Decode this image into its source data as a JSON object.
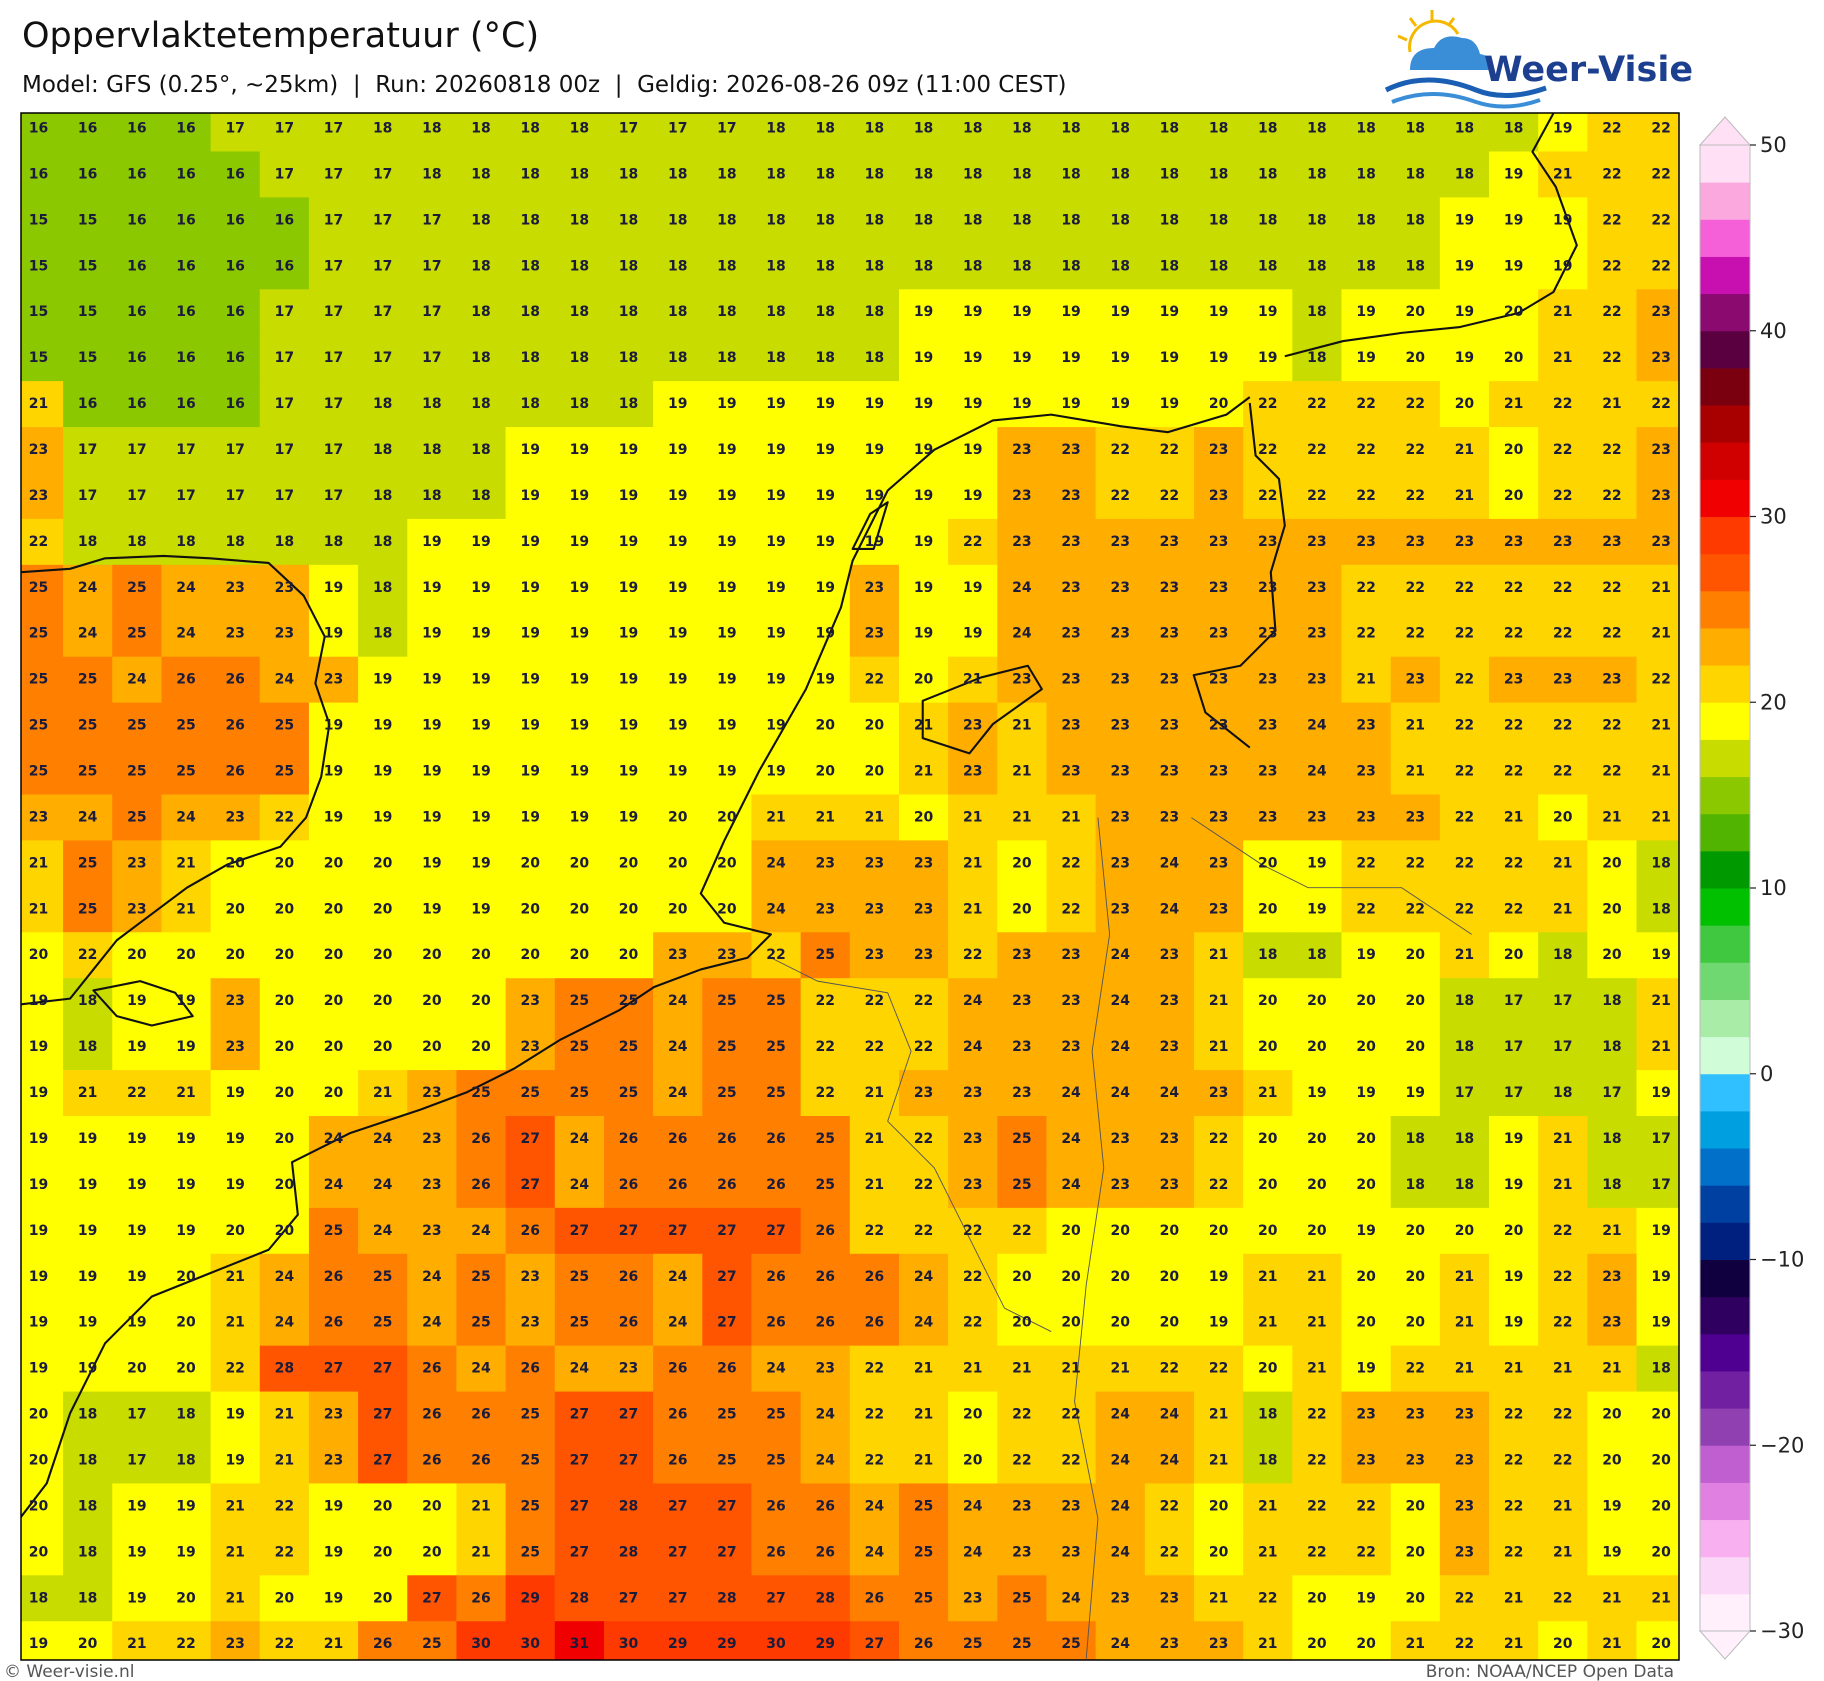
{
  "header": {
    "title": "Oppervlaktetemperatuur (°C)",
    "subtitle": "Model: GFS (0.25°, ~25km)  |  Run: 20260818 00z  |  Geldig: 2026-08-26 09z (11:00 CEST)",
    "logo": "Weer-Visie"
  },
  "map": {
    "grid": [
      [
        16,
        16,
        16,
        16,
        17,
        17,
        17,
        18,
        18,
        18,
        18,
        18,
        17,
        17,
        17,
        18,
        18,
        18,
        18,
        18,
        18,
        18,
        18,
        18,
        18,
        18,
        18,
        18,
        18,
        18,
        18,
        19,
        22,
        22
      ],
      [
        16,
        16,
        16,
        16,
        16,
        17,
        17,
        17,
        18,
        18,
        18,
        18,
        18,
        18,
        18,
        18,
        18,
        18,
        18,
        18,
        18,
        18,
        18,
        18,
        18,
        18,
        18,
        18,
        18,
        18,
        19,
        21,
        22,
        22
      ],
      [
        15,
        15,
        16,
        16,
        16,
        16,
        17,
        17,
        17,
        18,
        18,
        18,
        18,
        18,
        18,
        18,
        18,
        18,
        18,
        18,
        18,
        18,
        18,
        18,
        18,
        18,
        18,
        18,
        18,
        19,
        19,
        19,
        22,
        22
      ],
      [
        15,
        15,
        16,
        16,
        16,
        16,
        17,
        17,
        17,
        18,
        18,
        18,
        18,
        18,
        18,
        18,
        18,
        18,
        18,
        18,
        18,
        18,
        18,
        18,
        18,
        18,
        18,
        18,
        18,
        19,
        19,
        19,
        22,
        22
      ],
      [
        15,
        15,
        16,
        16,
        16,
        17,
        17,
        17,
        17,
        18,
        18,
        18,
        18,
        18,
        18,
        18,
        18,
        18,
        19,
        19,
        19,
        19,
        19,
        19,
        19,
        19,
        18,
        19,
        20,
        19,
        20,
        21,
        22,
        23
      ],
      [
        15,
        15,
        16,
        16,
        16,
        17,
        17,
        17,
        17,
        18,
        18,
        18,
        18,
        18,
        18,
        18,
        18,
        18,
        19,
        19,
        19,
        19,
        19,
        19,
        19,
        19,
        18,
        19,
        20,
        19,
        20,
        21,
        22,
        23
      ],
      [
        21,
        16,
        16,
        16,
        16,
        17,
        17,
        18,
        18,
        18,
        18,
        18,
        18,
        19,
        19,
        19,
        19,
        19,
        19,
        19,
        19,
        19,
        19,
        19,
        20,
        22,
        22,
        22,
        22,
        20,
        21,
        22,
        21,
        22
      ],
      [
        23,
        17,
        17,
        17,
        17,
        17,
        17,
        18,
        18,
        18,
        19,
        19,
        19,
        19,
        19,
        19,
        19,
        19,
        19,
        19,
        23,
        23,
        22,
        22,
        23,
        22,
        22,
        22,
        22,
        21,
        20,
        22,
        22,
        23
      ],
      [
        23,
        17,
        17,
        17,
        17,
        17,
        17,
        18,
        18,
        18,
        19,
        19,
        19,
        19,
        19,
        19,
        19,
        19,
        19,
        19,
        23,
        23,
        22,
        22,
        23,
        22,
        22,
        22,
        22,
        21,
        20,
        22,
        22,
        23
      ],
      [
        22,
        18,
        18,
        18,
        18,
        18,
        18,
        18,
        19,
        19,
        19,
        19,
        19,
        19,
        19,
        19,
        19,
        19,
        19,
        22,
        23,
        23,
        23,
        23,
        23,
        23,
        23,
        23,
        23,
        23,
        23,
        23,
        23,
        23
      ],
      [
        25,
        24,
        25,
        24,
        23,
        23,
        19,
        18,
        19,
        19,
        19,
        19,
        19,
        19,
        19,
        19,
        19,
        23,
        19,
        19,
        24,
        23,
        23,
        23,
        23,
        23,
        23,
        22,
        22,
        22,
        22,
        22,
        22,
        21
      ],
      [
        25,
        24,
        25,
        24,
        23,
        23,
        19,
        18,
        19,
        19,
        19,
        19,
        19,
        19,
        19,
        19,
        19,
        23,
        19,
        19,
        24,
        23,
        23,
        23,
        23,
        23,
        23,
        22,
        22,
        22,
        22,
        22,
        22,
        21
      ],
      [
        25,
        25,
        24,
        26,
        26,
        24,
        23,
        19,
        19,
        19,
        19,
        19,
        19,
        19,
        19,
        19,
        19,
        22,
        20,
        21,
        23,
        23,
        23,
        23,
        23,
        23,
        23,
        21,
        23,
        22,
        23,
        23,
        23,
        22
      ],
      [
        25,
        25,
        25,
        25,
        26,
        25,
        19,
        19,
        19,
        19,
        19,
        19,
        19,
        19,
        19,
        19,
        20,
        20,
        21,
        23,
        21,
        23,
        23,
        23,
        23,
        23,
        24,
        23,
        21,
        22,
        22,
        22,
        22,
        21
      ],
      [
        25,
        25,
        25,
        25,
        26,
        25,
        19,
        19,
        19,
        19,
        19,
        19,
        19,
        19,
        19,
        19,
        20,
        20,
        21,
        23,
        21,
        23,
        23,
        23,
        23,
        23,
        24,
        23,
        21,
        22,
        22,
        22,
        22,
        21
      ],
      [
        23,
        24,
        25,
        24,
        23,
        22,
        19,
        19,
        19,
        19,
        19,
        19,
        19,
        20,
        20,
        21,
        21,
        21,
        20,
        21,
        21,
        21,
        23,
        23,
        23,
        23,
        23,
        23,
        23,
        22,
        21,
        20,
        21,
        21
      ],
      [
        21,
        25,
        23,
        21,
        20,
        20,
        20,
        20,
        19,
        19,
        20,
        20,
        20,
        20,
        20,
        24,
        23,
        23,
        23,
        21,
        20,
        22,
        23,
        24,
        23,
        20,
        19,
        22,
        22,
        22,
        22,
        21,
        20,
        18
      ],
      [
        21,
        25,
        23,
        21,
        20,
        20,
        20,
        20,
        19,
        19,
        20,
        20,
        20,
        20,
        20,
        24,
        23,
        23,
        23,
        21,
        20,
        22,
        23,
        24,
        23,
        20,
        19,
        22,
        22,
        22,
        22,
        21,
        20,
        18
      ],
      [
        20,
        22,
        20,
        20,
        20,
        20,
        20,
        20,
        20,
        20,
        20,
        20,
        20,
        23,
        23,
        22,
        25,
        23,
        23,
        22,
        23,
        23,
        24,
        23,
        21,
        18,
        18,
        19,
        20,
        21,
        20,
        18,
        20,
        19
      ],
      [
        19,
        18,
        19,
        19,
        23,
        20,
        20,
        20,
        20,
        20,
        23,
        25,
        25,
        24,
        25,
        25,
        22,
        22,
        22,
        24,
        23,
        23,
        24,
        23,
        21,
        20,
        20,
        20,
        20,
        18,
        17,
        17,
        18,
        21
      ],
      [
        19,
        18,
        19,
        19,
        23,
        20,
        20,
        20,
        20,
        20,
        23,
        25,
        25,
        24,
        25,
        25,
        22,
        22,
        22,
        24,
        23,
        23,
        24,
        23,
        21,
        20,
        20,
        20,
        20,
        18,
        17,
        17,
        18,
        21
      ],
      [
        19,
        21,
        22,
        21,
        19,
        20,
        20,
        21,
        23,
        25,
        25,
        25,
        25,
        24,
        25,
        25,
        22,
        21,
        23,
        23,
        23,
        24,
        24,
        24,
        23,
        21,
        19,
        19,
        19,
        17,
        17,
        18,
        17,
        19
      ],
      [
        19,
        19,
        19,
        19,
        19,
        20,
        24,
        24,
        23,
        26,
        27,
        24,
        26,
        26,
        26,
        26,
        25,
        21,
        22,
        23,
        25,
        24,
        23,
        23,
        22,
        20,
        20,
        20,
        18,
        18,
        19,
        21,
        18,
        17
      ],
      [
        19,
        19,
        19,
        19,
        19,
        20,
        24,
        24,
        23,
        26,
        27,
        24,
        26,
        26,
        26,
        26,
        25,
        21,
        22,
        23,
        25,
        24,
        23,
        23,
        22,
        20,
        20,
        20,
        18,
        18,
        19,
        21,
        18,
        17
      ],
      [
        19,
        19,
        19,
        19,
        20,
        20,
        25,
        24,
        23,
        24,
        26,
        27,
        27,
        27,
        27,
        27,
        26,
        22,
        22,
        22,
        22,
        20,
        20,
        20,
        20,
        20,
        20,
        19,
        20,
        20,
        20,
        22,
        21,
        19
      ],
      [
        19,
        19,
        19,
        20,
        21,
        24,
        26,
        25,
        24,
        25,
        23,
        25,
        26,
        24,
        27,
        26,
        26,
        26,
        24,
        22,
        20,
        20,
        20,
        20,
        19,
        21,
        21,
        20,
        20,
        21,
        19,
        22,
        23,
        19
      ],
      [
        19,
        19,
        19,
        20,
        21,
        24,
        26,
        25,
        24,
        25,
        23,
        25,
        26,
        24,
        27,
        26,
        26,
        26,
        24,
        22,
        20,
        20,
        20,
        20,
        19,
        21,
        21,
        20,
        20,
        21,
        19,
        22,
        23,
        19
      ],
      [
        19,
        19,
        20,
        20,
        22,
        28,
        27,
        27,
        26,
        24,
        26,
        24,
        23,
        26,
        26,
        24,
        23,
        22,
        21,
        21,
        21,
        21,
        21,
        22,
        22,
        20,
        21,
        19,
        22,
        21,
        21,
        21,
        21,
        18
      ],
      [
        20,
        18,
        17,
        18,
        19,
        21,
        23,
        27,
        26,
        26,
        25,
        27,
        27,
        26,
        25,
        25,
        24,
        22,
        21,
        20,
        22,
        22,
        24,
        24,
        21,
        18,
        22,
        23,
        23,
        23,
        22,
        22,
        20,
        20
      ],
      [
        20,
        18,
        17,
        18,
        19,
        21,
        23,
        27,
        26,
        26,
        25,
        27,
        27,
        26,
        25,
        25,
        24,
        22,
        21,
        20,
        22,
        22,
        24,
        24,
        21,
        18,
        22,
        23,
        23,
        23,
        22,
        22,
        20,
        20
      ],
      [
        20,
        18,
        19,
        19,
        21,
        22,
        19,
        20,
        20,
        21,
        25,
        27,
        28,
        27,
        27,
        26,
        26,
        24,
        25,
        24,
        23,
        23,
        24,
        22,
        20,
        21,
        22,
        22,
        20,
        23,
        22,
        21,
        19,
        20
      ],
      [
        20,
        18,
        19,
        19,
        21,
        22,
        19,
        20,
        20,
        21,
        25,
        27,
        28,
        27,
        27,
        26,
        26,
        24,
        25,
        24,
        23,
        23,
        24,
        22,
        20,
        21,
        22,
        22,
        20,
        23,
        22,
        21,
        19,
        20
      ],
      [
        18,
        18,
        19,
        20,
        21,
        20,
        19,
        20,
        27,
        26,
        29,
        28,
        27,
        27,
        28,
        27,
        28,
        26,
        25,
        23,
        25,
        24,
        23,
        23,
        21,
        22,
        20,
        19,
        20,
        22,
        21,
        22,
        21,
        21
      ],
      [
        19,
        20,
        21,
        22,
        23,
        22,
        21,
        26,
        25,
        30,
        30,
        31,
        30,
        29,
        29,
        30,
        29,
        27,
        26,
        25,
        25,
        25,
        24,
        23,
        23,
        21,
        20,
        20,
        21,
        22,
        21,
        20,
        21,
        20
      ]
    ],
    "colorbar": {
      "ticks": [
        50,
        40,
        30,
        20,
        10,
        0,
        {
          "value": -10,
          "label": "−10"
        },
        {
          "value": -20,
          "label": "−20"
        },
        {
          "value": -30,
          "label": "−30"
        }
      ],
      "colors": [
        "#fff0fc",
        "#fcd8f8",
        "#f8b0f0",
        "#e080e0",
        "#c060d0",
        "#9040b0",
        "#7020a0",
        "#500090",
        "#300060",
        "#100040",
        "#002080",
        "#0040a0",
        "#0070c8",
        "#00a0e0",
        "#30c0ff",
        "#d0fcd8",
        "#a8eca8",
        "#70d870",
        "#40c840",
        "#00c000",
        "#009a00",
        "#50b400",
        "#8cc800",
        "#c8dc00",
        "#ffff00",
        "#ffd500",
        "#ffae00",
        "#ff8000",
        "#ff5500",
        "#ff3a00",
        "#f00000",
        "#d00000",
        "#a80000",
        "#7a0010",
        "#5a0040",
        "#8a0a70",
        "#c80fb0",
        "#f560d8",
        "#fba8de",
        "#ffe0f5"
      ]
    }
  },
  "footer": {
    "copyright": "© Weer-visie.nl",
    "source": "Bron: NOAA/NCEP Open Data"
  }
}
